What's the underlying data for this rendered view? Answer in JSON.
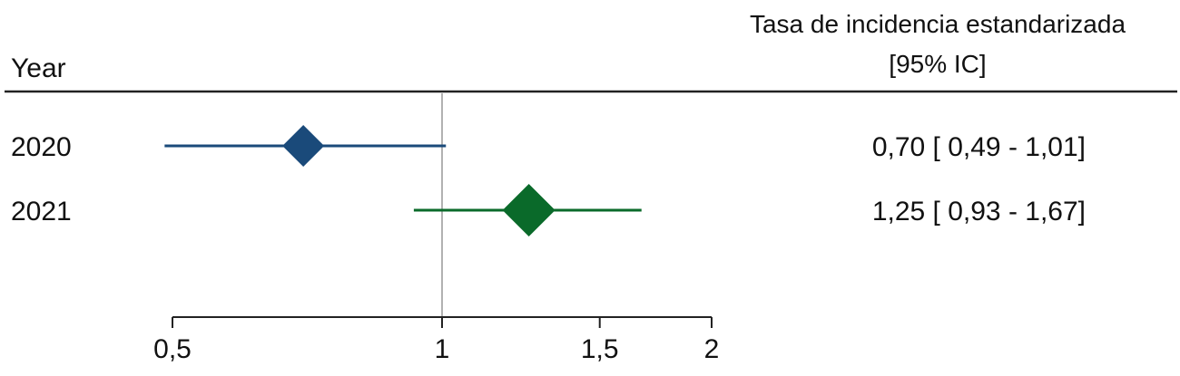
{
  "chart_data": {
    "type": "forest",
    "row_header": "Year",
    "value_header": [
      "Tasa de incidencia estandarizada",
      "[95% IC]"
    ],
    "x_scale": "log",
    "xlim": [
      0.5,
      2
    ],
    "reference_line": 1,
    "x_ticks": [
      0.5,
      1,
      1.5,
      2
    ],
    "x_tick_labels": [
      "0,5",
      "1",
      "1,5",
      "2"
    ],
    "rows": [
      {
        "label": "2020",
        "estimate": 0.7,
        "lower": 0.49,
        "upper": 1.01,
        "text": "0,70 [ 0,49 - 1,01]",
        "color": "#1a4a7a"
      },
      {
        "label": "2021",
        "estimate": 1.25,
        "lower": 0.93,
        "upper": 1.67,
        "text": "1,25 [ 0,93 - 1,67]",
        "color": "#0a6a2a"
      }
    ]
  }
}
